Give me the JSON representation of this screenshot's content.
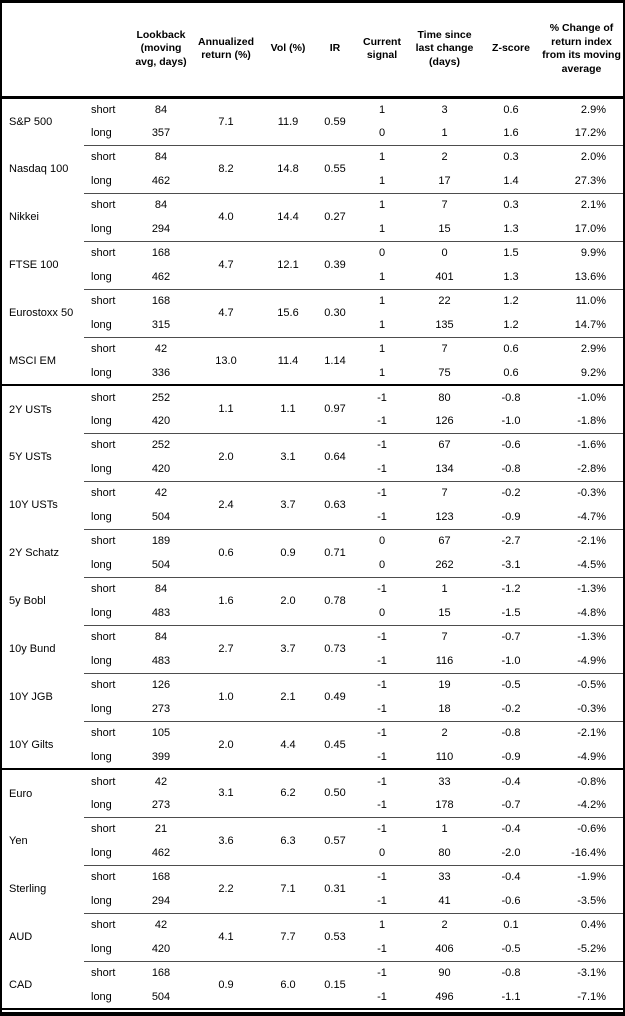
{
  "labels": {
    "short": "short",
    "long": "long"
  },
  "header": {
    "columns": [
      "",
      "",
      "Lookback (moving avg, days)",
      "Annualized return (%)",
      "Vol (%)",
      "IR",
      "Current signal",
      "Time since last change (days)",
      "Z-score",
      "% Change of return index from its moving average"
    ]
  },
  "sections": [
    {
      "groups": [
        {
          "name": "S&P 500",
          "ann_return": "7.1",
          "vol": "11.9",
          "ir": "0.59",
          "short": {
            "lookback": "84",
            "signal": "1",
            "time": "3",
            "zscore": "0.6",
            "pct": "2.9%"
          },
          "long": {
            "lookback": "357",
            "signal": "0",
            "time": "1",
            "zscore": "1.6",
            "pct": "17.2%"
          }
        },
        {
          "name": "Nasdaq 100",
          "ann_return": "8.2",
          "vol": "14.8",
          "ir": "0.55",
          "short": {
            "lookback": "84",
            "signal": "1",
            "time": "2",
            "zscore": "0.3",
            "pct": "2.0%"
          },
          "long": {
            "lookback": "462",
            "signal": "1",
            "time": "17",
            "zscore": "1.4",
            "pct": "27.3%"
          }
        },
        {
          "name": "Nikkei",
          "ann_return": "4.0",
          "vol": "14.4",
          "ir": "0.27",
          "short": {
            "lookback": "84",
            "signal": "1",
            "time": "7",
            "zscore": "0.3",
            "pct": "2.1%"
          },
          "long": {
            "lookback": "294",
            "signal": "1",
            "time": "15",
            "zscore": "1.3",
            "pct": "17.0%"
          }
        },
        {
          "name": "FTSE 100",
          "ann_return": "4.7",
          "vol": "12.1",
          "ir": "0.39",
          "short": {
            "lookback": "168",
            "signal": "0",
            "time": "0",
            "zscore": "1.5",
            "pct": "9.9%"
          },
          "long": {
            "lookback": "462",
            "signal": "1",
            "time": "401",
            "zscore": "1.3",
            "pct": "13.6%"
          }
        },
        {
          "name": "Eurostoxx 50",
          "ann_return": "4.7",
          "vol": "15.6",
          "ir": "0.30",
          "short": {
            "lookback": "168",
            "signal": "1",
            "time": "22",
            "zscore": "1.2",
            "pct": "11.0%"
          },
          "long": {
            "lookback": "315",
            "signal": "1",
            "time": "135",
            "zscore": "1.2",
            "pct": "14.7%"
          }
        },
        {
          "name": "MSCI EM",
          "ann_return": "13.0",
          "vol": "11.4",
          "ir": "1.14",
          "short": {
            "lookback": "42",
            "signal": "1",
            "time": "7",
            "zscore": "0.6",
            "pct": "2.9%"
          },
          "long": {
            "lookback": "336",
            "signal": "1",
            "time": "75",
            "zscore": "0.6",
            "pct": "9.2%"
          }
        }
      ]
    },
    {
      "groups": [
        {
          "name": "2Y USTs",
          "ann_return": "1.1",
          "vol": "1.1",
          "ir": "0.97",
          "short": {
            "lookback": "252",
            "signal": "-1",
            "time": "80",
            "zscore": "-0.8",
            "pct": "-1.0%"
          },
          "long": {
            "lookback": "420",
            "signal": "-1",
            "time": "126",
            "zscore": "-1.0",
            "pct": "-1.8%"
          }
        },
        {
          "name": "5Y USTs",
          "ann_return": "2.0",
          "vol": "3.1",
          "ir": "0.64",
          "short": {
            "lookback": "252",
            "signal": "-1",
            "time": "67",
            "zscore": "-0.6",
            "pct": "-1.6%"
          },
          "long": {
            "lookback": "420",
            "signal": "-1",
            "time": "134",
            "zscore": "-0.8",
            "pct": "-2.8%"
          }
        },
        {
          "name": "10Y USTs",
          "ann_return": "2.4",
          "vol": "3.7",
          "ir": "0.63",
          "short": {
            "lookback": "42",
            "signal": "-1",
            "time": "7",
            "zscore": "-0.2",
            "pct": "-0.3%"
          },
          "long": {
            "lookback": "504",
            "signal": "-1",
            "time": "123",
            "zscore": "-0.9",
            "pct": "-4.7%"
          }
        },
        {
          "name": "2Y Schatz",
          "ann_return": "0.6",
          "vol": "0.9",
          "ir": "0.71",
          "short": {
            "lookback": "189",
            "signal": "0",
            "time": "67",
            "zscore": "-2.7",
            "pct": "-2.1%"
          },
          "long": {
            "lookback": "504",
            "signal": "0",
            "time": "262",
            "zscore": "-3.1",
            "pct": "-4.5%"
          }
        },
        {
          "name": "5y Bobl",
          "ann_return": "1.6",
          "vol": "2.0",
          "ir": "0.78",
          "short": {
            "lookback": "84",
            "signal": "-1",
            "time": "1",
            "zscore": "-1.2",
            "pct": "-1.3%"
          },
          "long": {
            "lookback": "483",
            "signal": "0",
            "time": "15",
            "zscore": "-1.5",
            "pct": "-4.8%"
          }
        },
        {
          "name": "10y Bund",
          "ann_return": "2.7",
          "vol": "3.7",
          "ir": "0.73",
          "short": {
            "lookback": "84",
            "signal": "-1",
            "time": "7",
            "zscore": "-0.7",
            "pct": "-1.3%"
          },
          "long": {
            "lookback": "483",
            "signal": "-1",
            "time": "116",
            "zscore": "-1.0",
            "pct": "-4.9%"
          }
        },
        {
          "name": "10Y JGB",
          "ann_return": "1.0",
          "vol": "2.1",
          "ir": "0.49",
          "short": {
            "lookback": "126",
            "signal": "-1",
            "time": "19",
            "zscore": "-0.5",
            "pct": "-0.5%"
          },
          "long": {
            "lookback": "273",
            "signal": "-1",
            "time": "18",
            "zscore": "-0.2",
            "pct": "-0.3%"
          }
        },
        {
          "name": "10Y Gilts",
          "ann_return": "2.0",
          "vol": "4.4",
          "ir": "0.45",
          "short": {
            "lookback": "105",
            "signal": "-1",
            "time": "2",
            "zscore": "-0.8",
            "pct": "-2.1%"
          },
          "long": {
            "lookback": "399",
            "signal": "-1",
            "time": "110",
            "zscore": "-0.9",
            "pct": "-4.9%"
          }
        }
      ]
    },
    {
      "groups": [
        {
          "name": "Euro",
          "ann_return": "3.1",
          "vol": "6.2",
          "ir": "0.50",
          "short": {
            "lookback": "42",
            "signal": "-1",
            "time": "33",
            "zscore": "-0.4",
            "pct": "-0.8%"
          },
          "long": {
            "lookback": "273",
            "signal": "-1",
            "time": "178",
            "zscore": "-0.7",
            "pct": "-4.2%"
          }
        },
        {
          "name": "Yen",
          "ann_return": "3.6",
          "vol": "6.3",
          "ir": "0.57",
          "short": {
            "lookback": "21",
            "signal": "-1",
            "time": "1",
            "zscore": "-0.4",
            "pct": "-0.6%"
          },
          "long": {
            "lookback": "462",
            "signal": "0",
            "time": "80",
            "zscore": "-2.0",
            "pct": "-16.4%"
          }
        },
        {
          "name": "Sterling",
          "ann_return": "2.2",
          "vol": "7.1",
          "ir": "0.31",
          "short": {
            "lookback": "168",
            "signal": "-1",
            "time": "33",
            "zscore": "-0.4",
            "pct": "-1.9%"
          },
          "long": {
            "lookback": "294",
            "signal": "-1",
            "time": "41",
            "zscore": "-0.6",
            "pct": "-3.5%"
          }
        },
        {
          "name": "AUD",
          "ann_return": "4.1",
          "vol": "7.7",
          "ir": "0.53",
          "short": {
            "lookback": "42",
            "signal": "1",
            "time": "2",
            "zscore": "0.1",
            "pct": "0.4%"
          },
          "long": {
            "lookback": "420",
            "signal": "-1",
            "time": "406",
            "zscore": "-0.5",
            "pct": "-5.2%"
          }
        },
        {
          "name": "CAD",
          "ann_return": "0.9",
          "vol": "6.0",
          "ir": "0.15",
          "short": {
            "lookback": "168",
            "signal": "-1",
            "time": "90",
            "zscore": "-0.8",
            "pct": "-3.1%"
          },
          "long": {
            "lookback": "504",
            "signal": "-1",
            "time": "496",
            "zscore": "-1.1",
            "pct": "-7.1%"
          }
        }
      ]
    }
  ]
}
